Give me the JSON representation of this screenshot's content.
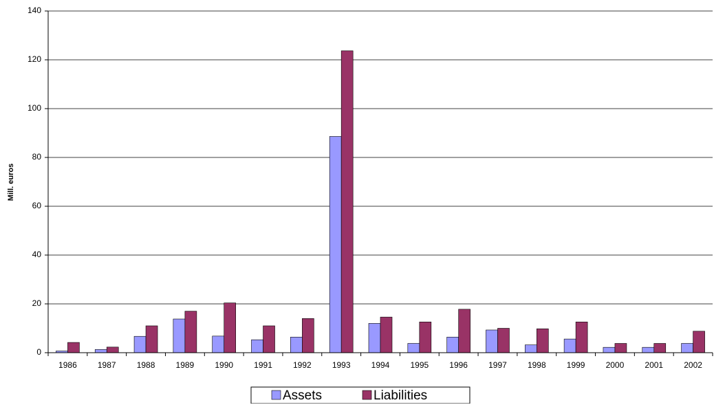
{
  "chart_data": {
    "type": "bar",
    "y_label": "Mill. euros",
    "categories": [
      "1986",
      "1987",
      "1988",
      "1989",
      "1990",
      "1991",
      "1992",
      "1993",
      "1994",
      "1995",
      "1996",
      "1997",
      "1998",
      "1999",
      "2000",
      "2001",
      "2002"
    ],
    "series": [
      {
        "name": "Assets",
        "color": "#9999ff",
        "values": [
          0.7,
          1.3,
          6.7,
          13.8,
          6.8,
          5.3,
          6.4,
          88.6,
          12,
          3.8,
          6.4,
          9.3,
          3.2,
          5.6,
          2.2,
          2.2,
          3.8
        ]
      },
      {
        "name": "Liabilities",
        "color": "#993366",
        "values": [
          4.2,
          2.3,
          11,
          17,
          20.4,
          11,
          14,
          123.7,
          14.6,
          12.6,
          17.8,
          10,
          9.8,
          12.6,
          3.8,
          3.8,
          8.8
        ]
      }
    ],
    "ylim": [
      0,
      140
    ],
    "yticks": [
      0,
      20,
      40,
      60,
      80,
      100,
      120,
      140
    ],
    "grid": true,
    "legend": "bottom"
  }
}
